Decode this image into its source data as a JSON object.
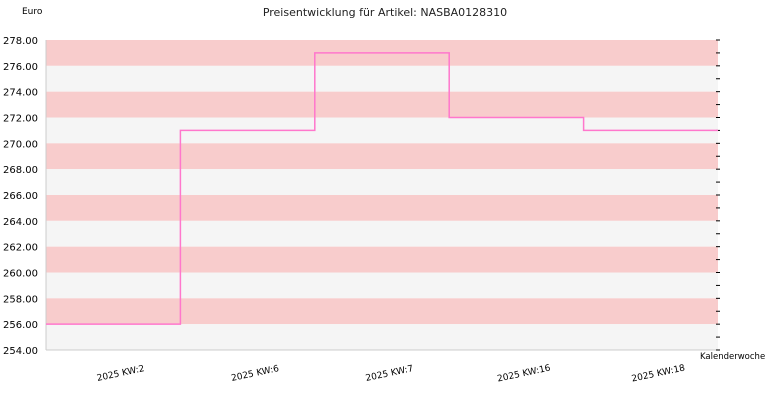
{
  "chart_data": {
    "type": "line",
    "title": "Preisentwicklung für Artikel: NASBA0128310",
    "ylabel": "Euro",
    "xlabel": "Kalenderwoche",
    "ylim": [
      254,
      278
    ],
    "y_ticks": [
      "254.00",
      "256.00",
      "258.00",
      "260.00",
      "262.00",
      "264.00",
      "266.00",
      "268.00",
      "270.00",
      "272.00",
      "274.00",
      "276.00",
      "278.00"
    ],
    "categories": [
      "2025 KW:2",
      "2025 KW:6",
      "2025 KW:7",
      "2025 KW:16",
      "2025 KW:18"
    ],
    "values": [
      256,
      271,
      277,
      272,
      271
    ],
    "line_style": "step",
    "line_color": "#ff77cc",
    "band_colors": [
      "#f8cccc",
      "#f5f5f5"
    ],
    "grid": true
  }
}
